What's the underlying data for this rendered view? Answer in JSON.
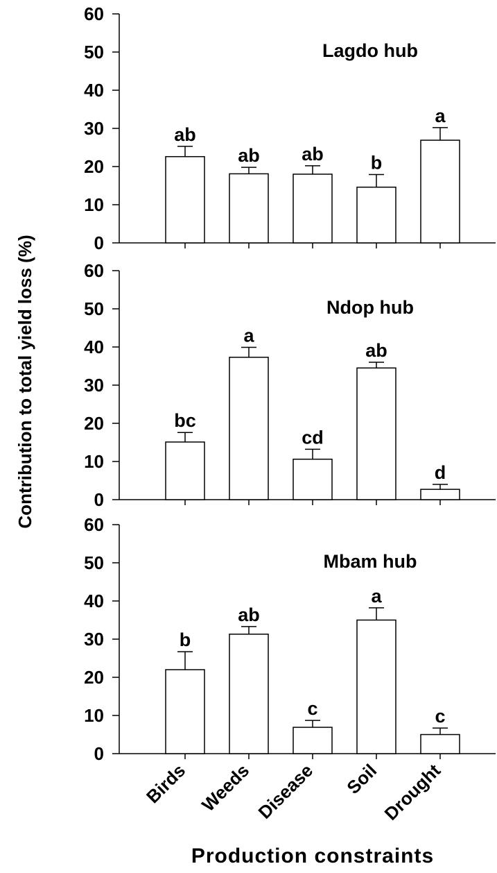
{
  "chart_data": {
    "type": "bar",
    "categories": [
      "Birds",
      "Weeds",
      "Disease",
      "Soil",
      "Drought"
    ],
    "ylabel": "Contribution to total yield loss (%)",
    "xlabel": "Production constraints",
    "ylim": [
      0,
      60
    ],
    "yticks": [
      "0",
      "10",
      "20",
      "30",
      "40",
      "50",
      "60"
    ],
    "panels": [
      {
        "title": "Lagdo hub",
        "values": [
          22.6,
          18.1,
          18.0,
          14.6,
          26.9
        ],
        "errors": [
          2.7,
          1.7,
          2.2,
          3.3,
          3.3
        ],
        "letters": [
          "ab",
          "ab",
          "ab",
          "b",
          "a"
        ]
      },
      {
        "title": "Ndop hub",
        "values": [
          15.1,
          37.3,
          10.6,
          34.5,
          2.7
        ],
        "errors": [
          2.5,
          2.6,
          2.6,
          1.5,
          1.3
        ],
        "letters": [
          "bc",
          "a",
          "cd",
          "ab",
          "d"
        ]
      },
      {
        "title": "Mbam hub",
        "values": [
          22.0,
          31.3,
          6.9,
          35.0,
          5.0
        ],
        "errors": [
          4.7,
          2.0,
          1.8,
          3.2,
          1.7
        ],
        "letters": [
          "b",
          "ab",
          "c",
          "a",
          "c"
        ]
      }
    ]
  }
}
